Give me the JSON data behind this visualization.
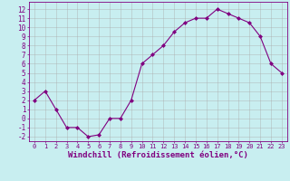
{
  "x": [
    0,
    1,
    2,
    3,
    4,
    5,
    6,
    7,
    8,
    9,
    10,
    11,
    12,
    13,
    14,
    15,
    16,
    17,
    18,
    19,
    20,
    21,
    22,
    23
  ],
  "y": [
    2,
    3,
    1,
    -1,
    -1,
    -2,
    -1.8,
    0,
    0,
    2,
    6,
    7,
    8,
    9.5,
    10.5,
    11,
    11,
    12,
    11.5,
    11,
    10.5,
    9,
    6,
    5
  ],
  "line_color": "#800080",
  "marker": "D",
  "marker_size": 2.0,
  "bg_color": "#c8eef0",
  "grid_color": "#aaaaaa",
  "xlabel": "Windchill (Refroidissement éolien,°C)",
  "xlabel_color": "#800080",
  "xlabel_fontsize": 6.5,
  "ytick_fontsize": 5.5,
  "xtick_fontsize": 5.0,
  "ylim": [
    -2.5,
    12.8
  ],
  "xlim": [
    -0.5,
    23.5
  ],
  "tick_color": "#800080",
  "spine_color": "#800080",
  "linewidth": 0.8
}
